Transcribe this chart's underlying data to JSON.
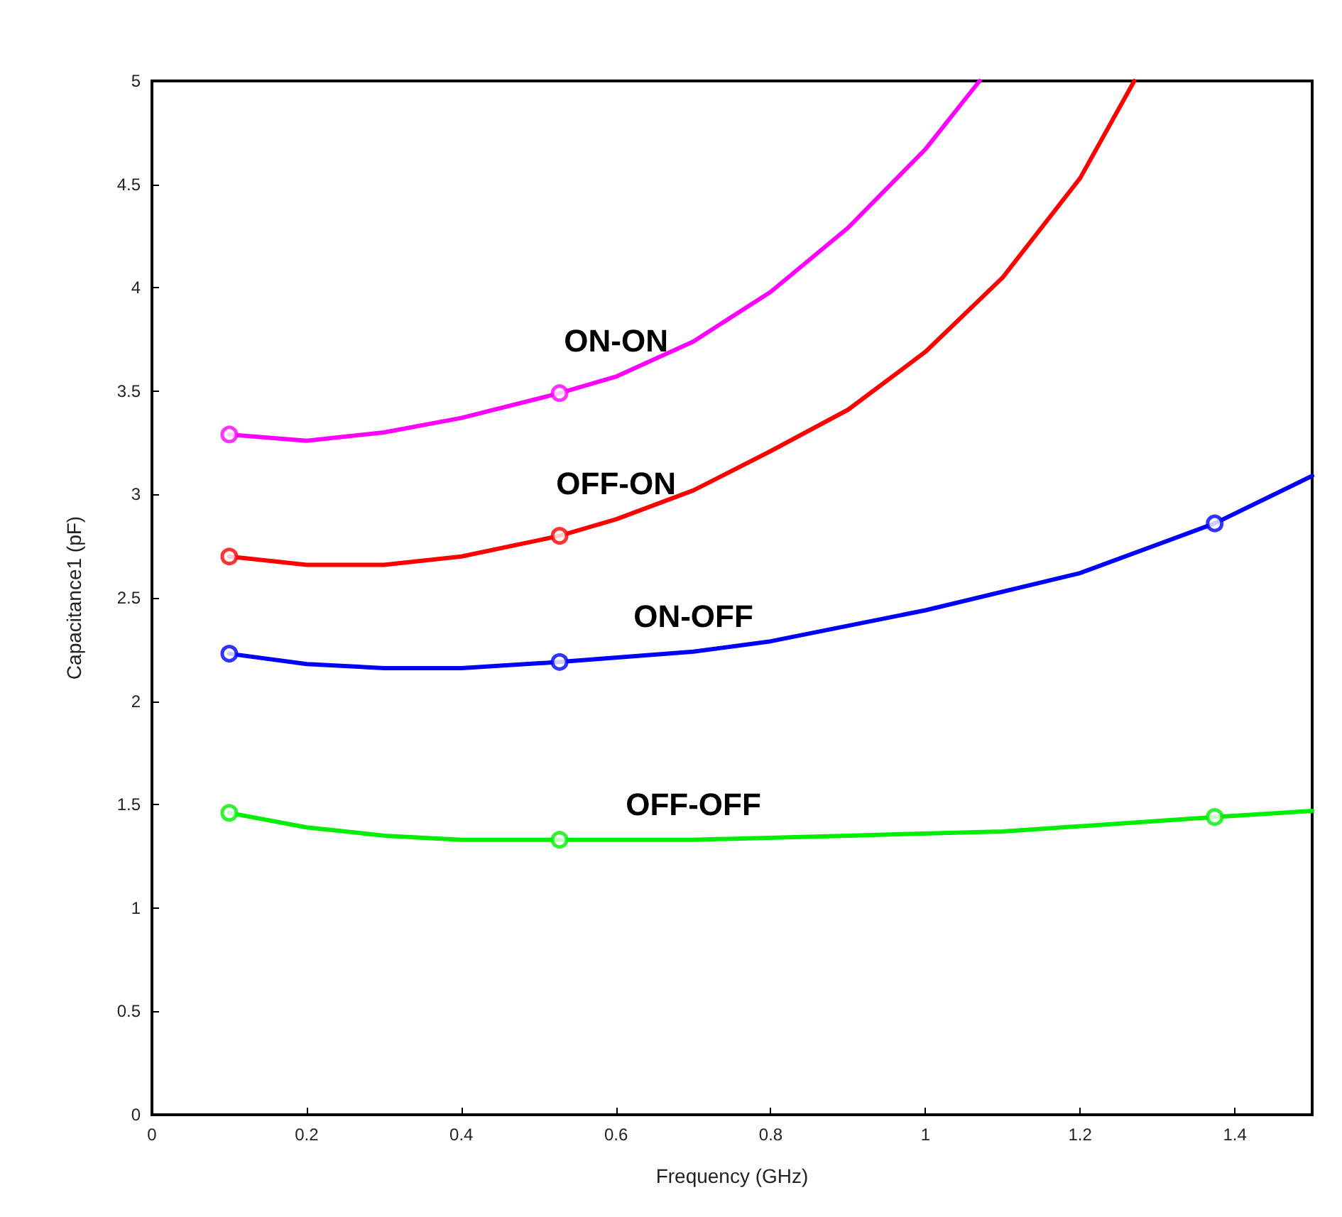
{
  "chart_data": {
    "type": "line",
    "xlabel": "Frequency (GHz)",
    "ylabel": "Capacitance1 (pF)",
    "xlim": [
      0,
      1.5
    ],
    "xticks": [
      0,
      0.2,
      0.4,
      0.6,
      0.8,
      1,
      1.2,
      1.4
    ],
    "ylim": [
      0,
      5
    ],
    "yticks": [
      0,
      0.5,
      1,
      1.5,
      2,
      2.5,
      3,
      3.5,
      4,
      4.5,
      5
    ],
    "grid": false,
    "marker": "none",
    "line_style": "solid",
    "series": [
      {
        "name": "ON-ON",
        "color": "#ff00ff",
        "x": [
          0.1,
          0.2,
          0.3,
          0.4,
          0.527,
          0.6,
          0.7,
          0.8,
          0.9,
          1.0,
          1.07
        ],
        "values": [
          3.29,
          3.26,
          3.3,
          3.37,
          3.49,
          3.57,
          3.74,
          3.98,
          4.29,
          4.67,
          5.0
        ]
      },
      {
        "name": "OFF-ON",
        "color": "#ff0000",
        "x": [
          0.1,
          0.2,
          0.3,
          0.4,
          0.527,
          0.6,
          0.7,
          0.8,
          0.9,
          1.0,
          1.1,
          1.2,
          1.27
        ],
        "values": [
          2.7,
          2.66,
          2.66,
          2.7,
          2.8,
          2.88,
          3.02,
          3.21,
          3.41,
          3.69,
          4.05,
          4.53,
          5.0
        ]
      },
      {
        "name": "ON-OFF",
        "color": "#0000ff",
        "x": [
          0.1,
          0.2,
          0.3,
          0.4,
          0.527,
          0.7,
          0.8,
          1.0,
          1.2,
          1.374,
          1.5
        ],
        "values": [
          2.23,
          2.18,
          2.16,
          2.16,
          2.19,
          2.24,
          2.29,
          2.44,
          2.62,
          2.86,
          3.09
        ]
      },
      {
        "name": "OFF-OFF",
        "color": "#00ee00",
        "x": [
          0.1,
          0.2,
          0.3,
          0.4,
          0.527,
          0.7,
          0.9,
          1.1,
          1.374,
          1.5
        ],
        "values": [
          1.46,
          1.39,
          1.35,
          1.33,
          1.33,
          1.33,
          1.35,
          1.37,
          1.44,
          1.47
        ]
      },
      {
        "type": "scatter",
        "marker": "circle",
        "color": "#ff00ff",
        "x": [
          0.1,
          0.527
        ],
        "values": [
          3.29,
          3.49
        ]
      },
      {
        "type": "scatter",
        "marker": "circle",
        "color": "#ff0000",
        "x": [
          0.1,
          0.527
        ],
        "values": [
          2.7,
          2.8
        ]
      },
      {
        "type": "scatter",
        "marker": "circle",
        "color": "#0000ff",
        "x": [
          0.1,
          0.527,
          1.374
        ],
        "values": [
          2.23,
          2.19,
          2.86
        ]
      },
      {
        "type": "scatter",
        "marker": "circle",
        "color": "#00ee00",
        "x": [
          0.1,
          0.527,
          1.374
        ],
        "values": [
          1.46,
          1.33,
          1.44
        ]
      }
    ]
  }
}
